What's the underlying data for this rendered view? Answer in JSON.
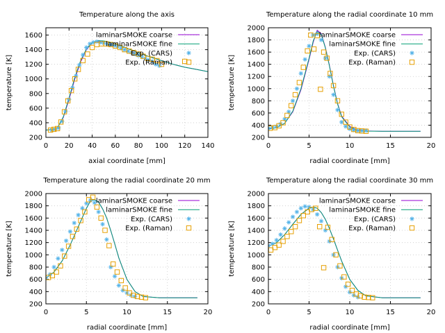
{
  "chart_data": [
    {
      "type": "line",
      "title": "Temperature along the axis",
      "xlabel": "axial coordinate [mm]",
      "ylabel": "temperature [K]",
      "xlim": [
        0,
        140
      ],
      "ylim": [
        200,
        1700
      ],
      "xticks": [
        0,
        20,
        40,
        60,
        80,
        100,
        120,
        140
      ],
      "yticks": [
        200,
        400,
        600,
        800,
        1000,
        1200,
        1400,
        1600
      ],
      "grid": true,
      "legend_position": "top-right",
      "series": [
        {
          "name": "laminarSMOKE coarse",
          "kind": "line",
          "color": "#9400d3",
          "x": [
            0,
            5,
            10,
            15,
            20,
            25,
            30,
            35,
            40,
            45,
            50,
            55,
            60,
            70,
            80,
            90,
            100,
            110,
            120,
            130,
            140
          ],
          "y": [
            300,
            305,
            330,
            470,
            720,
            1000,
            1230,
            1400,
            1490,
            1520,
            1515,
            1500,
            1480,
            1420,
            1360,
            1300,
            1250,
            1200,
            1160,
            1130,
            1100
          ]
        },
        {
          "name": "laminarSMOKE fine",
          "kind": "line",
          "color": "#009e73",
          "x": [
            0,
            5,
            10,
            15,
            20,
            25,
            30,
            35,
            40,
            45,
            50,
            55,
            60,
            70,
            80,
            90,
            100,
            110,
            120,
            130,
            140
          ],
          "y": [
            300,
            305,
            330,
            480,
            740,
            1020,
            1250,
            1410,
            1495,
            1525,
            1520,
            1505,
            1480,
            1420,
            1360,
            1300,
            1250,
            1200,
            1160,
            1130,
            1100
          ]
        },
        {
          "name": "Exp. (CARS)",
          "kind": "star",
          "color": "#56b4e9",
          "x": [
            5,
            8,
            11,
            14,
            17,
            20,
            23,
            26,
            29,
            32,
            35,
            38,
            41,
            44,
            47,
            50,
            53,
            56,
            59,
            62,
            65,
            68,
            71,
            74,
            77,
            80,
            83,
            86,
            89,
            92,
            95,
            98
          ],
          "y": [
            300,
            310,
            330,
            420,
            560,
            720,
            880,
            1040,
            1190,
            1330,
            1430,
            1480,
            1500,
            1510,
            1500,
            1490,
            1480,
            1470,
            1460,
            1440,
            1420,
            1400,
            1380,
            1360,
            1340,
            1320,
            1300,
            1280,
            1260,
            1240,
            1200,
            1180
          ]
        },
        {
          "name": "Exp. (Raman)",
          "kind": "square",
          "color": "#e69f00",
          "x": [
            4,
            7,
            10,
            13,
            16,
            19,
            22,
            25,
            28,
            32,
            36,
            40,
            44,
            48,
            52,
            56,
            60,
            64,
            68,
            72,
            76,
            80,
            84,
            88,
            92,
            96,
            100,
            120
          ],
          "y": [
            300,
            310,
            320,
            410,
            550,
            700,
            840,
            1000,
            1130,
            1250,
            1340,
            1430,
            1470,
            1480,
            1480,
            1470,
            1450,
            1430,
            1400,
            1380,
            1360,
            1340,
            1310,
            1280,
            1270,
            1250,
            1200,
            1240
          ]
        }
      ]
    },
    {
      "type": "line",
      "title": "Temperature along the radial coordinate 10 mm",
      "xlabel": "radial coordinate [mm]",
      "ylabel": "temperature [K]",
      "xlim": [
        0,
        20
      ],
      "ylim": [
        200,
        2000
      ],
      "xticks": [
        0,
        5,
        10,
        15,
        20
      ],
      "yticks": [
        200,
        400,
        600,
        800,
        1000,
        1200,
        1400,
        1600,
        1800,
        2000
      ],
      "grid": true,
      "legend_position": "top-right",
      "series": [
        {
          "name": "laminarSMOKE coarse",
          "kind": "line",
          "color": "#9400d3",
          "x": [
            0,
            1,
            2,
            3,
            4,
            5,
            5.5,
            6,
            6.5,
            7,
            7.5,
            8,
            8.5,
            9,
            10,
            11,
            12,
            14,
            16,
            18.7
          ],
          "y": [
            340,
            360,
            430,
            620,
            980,
            1480,
            1760,
            1960,
            1900,
            1680,
            1380,
            1050,
            760,
            550,
            380,
            320,
            305,
            300,
            300,
            300
          ]
        },
        {
          "name": "laminarSMOKE fine",
          "kind": "line",
          "color": "#009e73",
          "x": [
            0,
            1,
            2,
            3,
            4,
            5,
            5.5,
            6,
            6.5,
            7,
            7.5,
            8,
            8.5,
            9,
            10,
            11,
            12,
            14,
            16,
            18.7
          ],
          "y": [
            340,
            360,
            430,
            630,
            1000,
            1500,
            1780,
            1940,
            1890,
            1670,
            1370,
            1040,
            750,
            540,
            370,
            315,
            303,
            300,
            300,
            300
          ]
        },
        {
          "name": "Exp. (CARS)",
          "kind": "star",
          "color": "#56b4e9",
          "x": [
            0,
            0.5,
            1,
            1.5,
            2,
            2.5,
            3,
            3.5,
            4,
            4.5,
            5,
            5.5,
            6,
            6.5,
            7,
            7.5,
            8,
            8.5,
            9,
            9.5,
            10,
            10.5,
            11,
            11.5,
            12
          ],
          "y": [
            350,
            360,
            380,
            420,
            500,
            620,
            800,
            1000,
            1250,
            1480,
            1700,
            1880,
            1900,
            1800,
            1500,
            1200,
            900,
            650,
            450,
            380,
            340,
            320,
            310,
            310,
            310
          ]
        },
        {
          "name": "Exp. (Raman)",
          "kind": "square",
          "color": "#e69f00",
          "x": [
            0.2,
            0.8,
            1.3,
            1.8,
            2.3,
            2.8,
            3.3,
            3.8,
            4.3,
            4.8,
            5.2,
            5.6,
            6.0,
            6.4,
            6.8,
            7.2,
            7.6,
            8.0,
            8.5,
            9.0,
            9.5,
            10.0,
            10.5,
            11.0,
            11.5,
            12.0
          ],
          "y": [
            350,
            360,
            390,
            440,
            560,
            720,
            900,
            1100,
            1350,
            1620,
            1880,
            1650,
            1870,
            990,
            1600,
            1500,
            1250,
            1050,
            800,
            580,
            450,
            370,
            330,
            310,
            305,
            300
          ]
        }
      ]
    },
    {
      "type": "line",
      "title": "Temperature along the radial coordinate 20 mm",
      "xlabel": "radial coordinate [mm]",
      "ylabel": "temperature [K]",
      "xlim": [
        0,
        20
      ],
      "ylim": [
        200,
        2000
      ],
      "xticks": [
        0,
        5,
        10,
        15,
        20
      ],
      "yticks": [
        200,
        400,
        600,
        800,
        1000,
        1200,
        1400,
        1600,
        1800,
        2000
      ],
      "grid": true,
      "legend_position": "top-right",
      "series": [
        {
          "name": "laminarSMOKE coarse",
          "kind": "line",
          "color": "#9400d3",
          "x": [
            0,
            1,
            2,
            3,
            4,
            5,
            5.5,
            6,
            6.5,
            7,
            7.5,
            8,
            8.5,
            9,
            10,
            11,
            12,
            14,
            16,
            18.7
          ],
          "y": [
            620,
            720,
            900,
            1160,
            1460,
            1760,
            1880,
            1900,
            1860,
            1750,
            1600,
            1400,
            1180,
            950,
            600,
            400,
            320,
            300,
            300,
            300
          ]
        },
        {
          "name": "laminarSMOKE fine",
          "kind": "line",
          "color": "#009e73",
          "x": [
            0,
            1,
            2,
            3,
            4,
            5,
            5.5,
            6,
            6.5,
            7,
            7.5,
            8,
            8.5,
            9,
            10,
            11,
            12,
            14,
            16,
            18.7
          ],
          "y": [
            620,
            720,
            900,
            1160,
            1460,
            1760,
            1880,
            1900,
            1860,
            1750,
            1600,
            1400,
            1180,
            950,
            600,
            400,
            320,
            300,
            300,
            300
          ]
        },
        {
          "name": "Exp. (CARS)",
          "kind": "star",
          "color": "#56b4e9",
          "x": [
            0,
            0.5,
            1,
            1.5,
            2,
            2.5,
            3,
            3.5,
            4,
            4.5,
            5,
            5.5,
            6,
            6.5,
            7,
            7.5,
            8,
            8.5,
            9,
            9.5,
            10,
            10.5,
            11
          ],
          "y": [
            620,
            680,
            800,
            940,
            1080,
            1230,
            1380,
            1520,
            1650,
            1760,
            1840,
            1890,
            1850,
            1700,
            1500,
            1250,
            800,
            650,
            500,
            420,
            380,
            340,
            320
          ]
        },
        {
          "name": "Exp. (Raman)",
          "kind": "square",
          "color": "#e69f00",
          "x": [
            0.3,
            0.8,
            1.3,
            1.8,
            2.3,
            2.8,
            3.3,
            3.8,
            4.3,
            4.8,
            5.3,
            5.8,
            6.3,
            6.8,
            7.3,
            7.8,
            8.3,
            8.8,
            9.3,
            9.8,
            10.3,
            10.8,
            11.3,
            11.8,
            12.3
          ],
          "y": [
            630,
            660,
            720,
            820,
            980,
            1140,
            1300,
            1420,
            1560,
            1700,
            1900,
            1940,
            1780,
            1600,
            1400,
            1150,
            850,
            720,
            580,
            460,
            380,
            340,
            320,
            310,
            300
          ]
        }
      ]
    },
    {
      "type": "line",
      "title": "Temperature along the radial coordinate 30 mm",
      "xlabel": "radial coordinate [mm]",
      "ylabel": "temperature [K]",
      "xlim": [
        0,
        20
      ],
      "ylim": [
        200,
        2000
      ],
      "xticks": [
        0,
        5,
        10,
        15,
        20
      ],
      "yticks": [
        200,
        400,
        600,
        800,
        1000,
        1200,
        1400,
        1600,
        1800,
        2000
      ],
      "grid": true,
      "legend_position": "top-right",
      "series": [
        {
          "name": "laminarSMOKE coarse",
          "kind": "line",
          "color": "#9400d3",
          "x": [
            0,
            1,
            2,
            3,
            4,
            5,
            5.5,
            6,
            6.5,
            7,
            7.5,
            8,
            8.5,
            9,
            10,
            11,
            12,
            14,
            16,
            18.7
          ],
          "y": [
            1140,
            1200,
            1330,
            1500,
            1660,
            1760,
            1780,
            1760,
            1690,
            1580,
            1430,
            1260,
            1080,
            900,
            600,
            420,
            330,
            300,
            300,
            300
          ]
        },
        {
          "name": "laminarSMOKE fine",
          "kind": "line",
          "color": "#009e73",
          "x": [
            0,
            1,
            2,
            3,
            4,
            5,
            5.5,
            6,
            6.5,
            7,
            7.5,
            8,
            8.5,
            9,
            10,
            11,
            12,
            14,
            16,
            18.7
          ],
          "y": [
            1140,
            1200,
            1330,
            1500,
            1660,
            1760,
            1780,
            1760,
            1690,
            1580,
            1430,
            1260,
            1080,
            900,
            600,
            420,
            330,
            300,
            300,
            300
          ]
        },
        {
          "name": "Exp. (CARS)",
          "kind": "star",
          "color": "#56b4e9",
          "x": [
            0,
            0.5,
            1,
            1.5,
            2,
            2.5,
            3,
            3.5,
            4,
            4.5,
            5,
            5.5,
            6,
            6.5,
            7,
            7.5,
            8,
            8.5,
            9,
            9.5,
            10,
            10.5,
            11
          ],
          "y": [
            1150,
            1180,
            1240,
            1330,
            1430,
            1530,
            1620,
            1700,
            1760,
            1790,
            1780,
            1740,
            1660,
            1550,
            1400,
            1220,
            1000,
            800,
            620,
            480,
            390,
            340,
            310
          ]
        },
        {
          "name": "Exp. (Raman)",
          "kind": "square",
          "color": "#e69f00",
          "x": [
            0.3,
            0.8,
            1.3,
            1.8,
            2.3,
            2.8,
            3.3,
            3.8,
            4.3,
            4.8,
            5.3,
            5.8,
            6.3,
            6.8,
            7.3,
            7.8,
            8.3,
            8.8,
            9.3,
            9.8,
            10.3,
            10.8,
            11.3,
            11.8,
            12.3,
            12.8
          ],
          "y": [
            1080,
            1120,
            1160,
            1220,
            1300,
            1380,
            1460,
            1560,
            1640,
            1700,
            1740,
            1760,
            1460,
            790,
            1450,
            1250,
            1000,
            820,
            640,
            520,
            420,
            360,
            330,
            310,
            305,
            300
          ]
        }
      ]
    }
  ]
}
